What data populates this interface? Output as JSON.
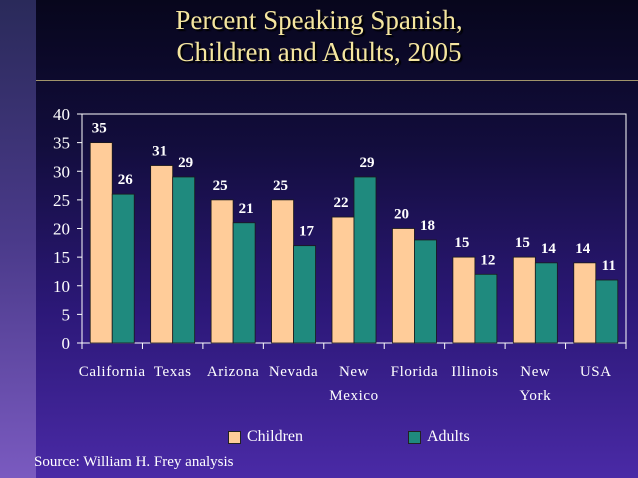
{
  "title": {
    "line1": "Percent Speaking Spanish,",
    "line2": "Children and Adults, 2005"
  },
  "source": "Source: William H. Frey analysis",
  "colors": {
    "children": "#ffcc99",
    "adults": "#1f8a7e",
    "title_text": "#f5e6a0",
    "label_text": "#ffffff"
  },
  "chart_data": {
    "type": "bar",
    "categories": [
      [
        "California"
      ],
      [
        "Texas"
      ],
      [
        "Arizona"
      ],
      [
        "Nevada"
      ],
      [
        "New",
        "Mexico"
      ],
      [
        "Florida"
      ],
      [
        "Illinois"
      ],
      [
        "New",
        "York"
      ],
      [
        "USA"
      ]
    ],
    "series": [
      {
        "name": "Children",
        "values": [
          35,
          31,
          25,
          25,
          22,
          20,
          15,
          15,
          14
        ]
      },
      {
        "name": "Adults",
        "values": [
          26,
          29,
          21,
          17,
          29,
          18,
          12,
          14,
          11
        ]
      }
    ],
    "ylim": [
      0,
      40
    ],
    "yticks": [
      "0",
      "5",
      "10",
      "15",
      "20",
      "25",
      "30",
      "35",
      "40"
    ],
    "grid": false,
    "legend_position": "bottom"
  }
}
